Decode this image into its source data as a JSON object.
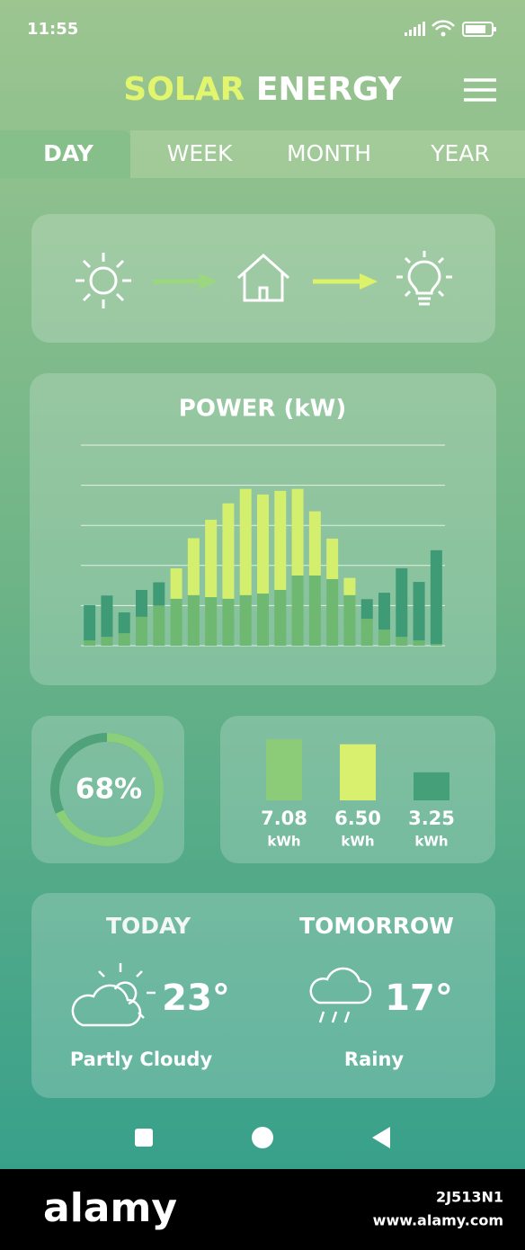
{
  "status": {
    "time": "11:55"
  },
  "header": {
    "title_part1": "SOLAR",
    "title_part2": "ENERGY"
  },
  "tabs": [
    "DAY",
    "WEEK",
    "MONTH",
    "YEAR"
  ],
  "power_chart": {
    "type": "bar",
    "title": "POWER (kW)",
    "categories": [
      null,
      null,
      null,
      null,
      null,
      null,
      null,
      null,
      null,
      null,
      null,
      null,
      null,
      null,
      null,
      null,
      null,
      null,
      null,
      null,
      null
    ],
    "series": [
      {
        "color": "#6fb872",
        "values": [
          0.13,
          0.22,
          0.31,
          0.72,
          1.0,
          1.17,
          1.26,
          1.21,
          1.17,
          1.26,
          1.3,
          1.39,
          1.75,
          1.75,
          1.66,
          1.26,
          0.67,
          0.4,
          0.22,
          0.13,
          0.04
        ]
      },
      {
        "colors": [
          "#3f9a76",
          "#3f9a76",
          "#3f9a76",
          "#3f9a76",
          "#3f9a76",
          "#d4ee6e",
          "#d4ee6e",
          "#d4ee6e",
          "#d4ee6e",
          "#d4ee6e",
          "#d4ee6e",
          "#d4ee6e",
          "#d4ee6e",
          "#d4ee6e",
          "#d4ee6e",
          "#d4ee6e",
          "#3f9a76",
          "#3f9a76",
          "#3f9a76",
          "#3f9a76",
          "#3f9a76"
        ],
        "values": [
          0.88,
          1.03,
          0.52,
          0.67,
          0.58,
          0.76,
          1.42,
          1.93,
          2.38,
          2.65,
          2.47,
          2.47,
          2.16,
          1.6,
          1.01,
          0.43,
          0.49,
          0.92,
          1.71,
          1.46,
          2.34
        ]
      }
    ],
    "ylim": [
      0,
      5
    ],
    "yticks": [
      0,
      1,
      2,
      3,
      4,
      5
    ],
    "grid": true
  },
  "efficiency": {
    "value": 68,
    "label": "68%",
    "range": [
      0,
      100
    ],
    "color": "#8ccf7a",
    "track": "#4fa27a"
  },
  "energy": {
    "values": [
      7.08,
      6.5,
      3.25
    ],
    "value_labels": [
      "7.08",
      "6.50",
      "3.25"
    ],
    "unit": "kWh",
    "colors": [
      "#8ccb78",
      "#d8f06e",
      "#45a07a"
    ],
    "ylim": [
      0,
      7.5
    ]
  },
  "weather": [
    {
      "day": "TODAY",
      "temp": "23°",
      "condition": "Partly Cloudy"
    },
    {
      "day": "TOMORROW",
      "temp": "17°",
      "condition": "Rainy"
    }
  ],
  "watermark": {
    "brand": "alamy",
    "image_id": "2J513N1",
    "url": "www.alamy.com"
  }
}
